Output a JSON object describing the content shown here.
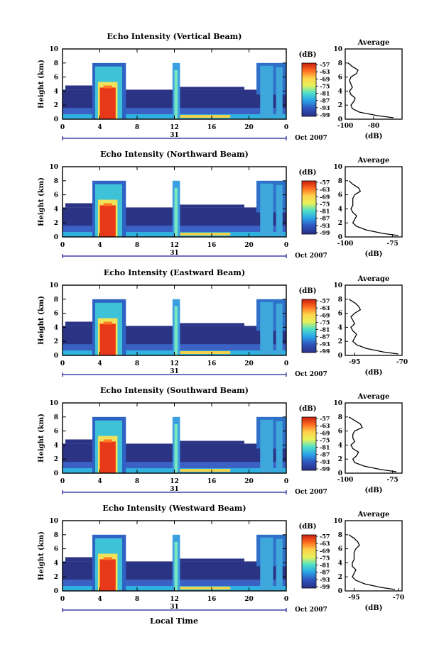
{
  "figure": {
    "xlabel": "Local Time",
    "date_label": "Oct 2007",
    "day_label": "31"
  },
  "colorbar": {
    "unit_label": "(dB)",
    "ticks": [
      "-57",
      "-63",
      "-69",
      "-75",
      "-81",
      "-87",
      "-93",
      "-99"
    ]
  },
  "chart_data": [
    {
      "type": "heatmap",
      "title": "Echo Intensity (Vertical Beam)",
      "ylabel": "Height (km)",
      "xlim": [
        0,
        24
      ],
      "ylim": [
        0,
        10
      ],
      "xticks": [
        "0",
        "4",
        "8",
        "12",
        "16",
        "20",
        "0"
      ],
      "yticks": [
        "0",
        "2",
        "4",
        "6",
        "8",
        "10"
      ],
      "colorbar_range_db": [
        -99,
        -57
      ],
      "profile": {
        "title": "Average",
        "xlabel": "(dB)",
        "xlim": [
          -100,
          -60
        ],
        "xticks": [
          "-100",
          "-80"
        ],
        "ylim": [
          0,
          10
        ],
        "yticks": [
          "0",
          "2",
          "4",
          "6",
          "8",
          "10"
        ],
        "heights_km": [
          0.2,
          0.5,
          1.0,
          1.5,
          2.0,
          2.5,
          3.0,
          3.5,
          4.0,
          4.5,
          5.0,
          5.5,
          6.0,
          6.5,
          7.0,
          7.5,
          8.0
        ],
        "values_db": [
          -66,
          -77,
          -90,
          -95,
          -96,
          -94,
          -93,
          -96,
          -97,
          -95,
          -96,
          -97,
          -96,
          -92,
          -91,
          -95,
          -98
        ]
      }
    },
    {
      "type": "heatmap",
      "title": "Echo Intensity (Northward Beam)",
      "ylabel": "Height (km)",
      "xlim": [
        0,
        24
      ],
      "ylim": [
        0,
        10
      ],
      "xticks": [
        "0",
        "4",
        "8",
        "12",
        "16",
        "20",
        "0"
      ],
      "yticks": [
        "0",
        "2",
        "4",
        "6",
        "8",
        "10"
      ],
      "colorbar_range_db": [
        -99,
        -57
      ],
      "profile": {
        "title": "Average",
        "xlabel": "(dB)",
        "xlim": [
          -100,
          -70
        ],
        "xticks": [
          "-100",
          "-75"
        ],
        "ylim": [
          0,
          10
        ],
        "yticks": [
          "0",
          "2",
          "4",
          "6",
          "8",
          "10"
        ],
        "heights_km": [
          0.2,
          0.5,
          1.0,
          1.5,
          2.0,
          2.5,
          3.0,
          3.5,
          4.0,
          4.5,
          5.0,
          5.5,
          6.0,
          6.5,
          7.0,
          7.5,
          8.0
        ],
        "values_db": [
          -72,
          -80,
          -89,
          -94,
          -96,
          -95,
          -94,
          -96,
          -97,
          -96,
          -96,
          -96,
          -95,
          -92,
          -93,
          -96,
          -98
        ]
      }
    },
    {
      "type": "heatmap",
      "title": "Echo Intensity (Eastward Beam)",
      "ylabel": "Height (km)",
      "xlim": [
        0,
        24
      ],
      "ylim": [
        0,
        10
      ],
      "xticks": [
        "0",
        "4",
        "8",
        "12",
        "16",
        "20",
        "0"
      ],
      "yticks": [
        "0",
        "2",
        "4",
        "6",
        "8",
        "10"
      ],
      "colorbar_range_db": [
        -99,
        -57
      ],
      "profile": {
        "title": "Average",
        "xlabel": "(dB)",
        "xlim": [
          -100,
          -70
        ],
        "xticks": [
          "-95",
          "-70"
        ],
        "ylim": [
          0,
          10
        ],
        "yticks": [
          "0",
          "2",
          "4",
          "6",
          "8",
          "10"
        ],
        "heights_km": [
          0.2,
          0.5,
          1.0,
          1.5,
          2.0,
          2.5,
          3.0,
          3.5,
          4.0,
          4.5,
          5.0,
          5.5,
          6.0,
          6.5,
          7.0,
          7.5,
          8.0
        ],
        "values_db": [
          -72,
          -80,
          -89,
          -94,
          -96,
          -95,
          -94,
          -96,
          -97,
          -95,
          -96,
          -97,
          -95,
          -92,
          -93,
          -95,
          -98
        ]
      }
    },
    {
      "type": "heatmap",
      "title": "Echo Intensity (Southward Beam)",
      "ylabel": "Height (km)",
      "xlim": [
        0,
        24
      ],
      "ylim": [
        0,
        10
      ],
      "xticks": [
        "0",
        "4",
        "8",
        "12",
        "16",
        "20",
        "0"
      ],
      "yticks": [
        "0",
        "2",
        "4",
        "6",
        "8",
        "10"
      ],
      "colorbar_range_db": [
        -99,
        -57
      ],
      "profile": {
        "title": "Average",
        "xlabel": "(dB)",
        "xlim": [
          -100,
          -70
        ],
        "xticks": [
          "-100",
          "-75"
        ],
        "ylim": [
          0,
          10
        ],
        "yticks": [
          "0",
          "2",
          "4",
          "6",
          "8",
          "10"
        ],
        "heights_km": [
          0.2,
          0.5,
          1.0,
          1.5,
          2.0,
          2.5,
          3.0,
          3.5,
          4.0,
          4.5,
          5.0,
          5.5,
          6.0,
          6.5,
          7.0,
          7.5,
          8.0
        ],
        "values_db": [
          -73,
          -81,
          -90,
          -95,
          -96,
          -94,
          -93,
          -96,
          -97,
          -95,
          -96,
          -96,
          -95,
          -91,
          -92,
          -95,
          -98
        ]
      }
    },
    {
      "type": "heatmap",
      "title": "Echo Intensity (Westward Beam)",
      "ylabel": "Height (km)",
      "xlim": [
        0,
        24
      ],
      "ylim": [
        0,
        10
      ],
      "xticks": [
        "0",
        "4",
        "8",
        "12",
        "16",
        "20",
        "0"
      ],
      "yticks": [
        "0",
        "2",
        "4",
        "6",
        "8",
        "10"
      ],
      "colorbar_range_db": [
        -99,
        -57
      ],
      "profile": {
        "title": "Average",
        "xlabel": "(dB)",
        "xlim": [
          -100,
          -68
        ],
        "xticks": [
          "-95",
          "-70"
        ],
        "ylim": [
          0,
          10
        ],
        "yticks": [
          "0",
          "2",
          "4",
          "6",
          "8",
          "10"
        ],
        "heights_km": [
          0.2,
          0.5,
          1.0,
          1.5,
          2.0,
          2.5,
          3.0,
          3.5,
          4.0,
          4.5,
          5.0,
          5.5,
          6.0,
          6.5,
          7.0,
          7.5,
          8.0
        ],
        "values_db": [
          -72,
          -80,
          -89,
          -94,
          -96,
          -95,
          -94,
          -96,
          -96,
          -95,
          -95,
          -95,
          -94,
          -92,
          -93,
          -95,
          -98
        ]
      }
    }
  ]
}
